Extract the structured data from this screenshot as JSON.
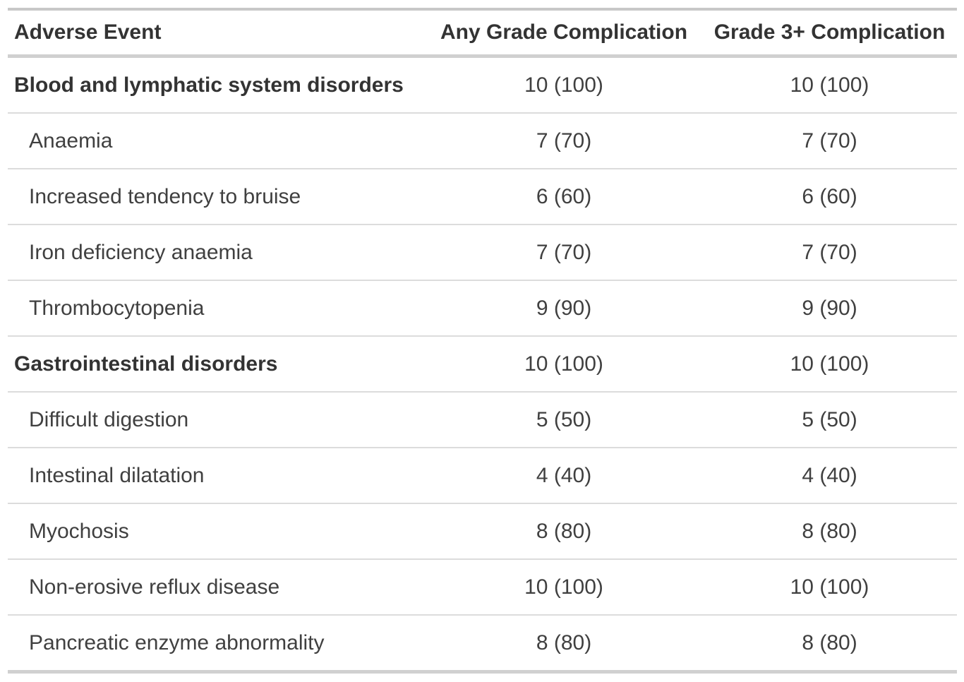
{
  "chart_data": {
    "type": "table",
    "columns": [
      "Adverse Event",
      "Any Grade Complication",
      "Grade 3+ Complication"
    ],
    "rows": [
      {
        "label": "Blood and lymphatic system disorders",
        "is_section": true,
        "cells": [
          "10 (100)",
          "10 (100)"
        ]
      },
      {
        "label": "Anaemia",
        "is_section": false,
        "cells": [
          "7 (70)",
          "7 (70)"
        ]
      },
      {
        "label": "Increased tendency to bruise",
        "is_section": false,
        "cells": [
          "6 (60)",
          "6 (60)"
        ]
      },
      {
        "label": "Iron deficiency anaemia",
        "is_section": false,
        "cells": [
          "7 (70)",
          "7 (70)"
        ]
      },
      {
        "label": "Thrombocytopenia",
        "is_section": false,
        "cells": [
          "9 (90)",
          "9 (90)"
        ]
      },
      {
        "label": "Gastrointestinal disorders",
        "is_section": true,
        "cells": [
          "10 (100)",
          "10 (100)"
        ]
      },
      {
        "label": "Difficult digestion",
        "is_section": false,
        "cells": [
          "5 (50)",
          "5 (50)"
        ]
      },
      {
        "label": "Intestinal dilatation",
        "is_section": false,
        "cells": [
          "4 (40)",
          "4 (40)"
        ]
      },
      {
        "label": "Myochosis",
        "is_section": false,
        "cells": [
          "8 (80)",
          "8 (80)"
        ]
      },
      {
        "label": "Non-erosive reflux disease",
        "is_section": false,
        "cells": [
          "10 (100)",
          "10 (100)"
        ]
      },
      {
        "label": "Pancreatic enzyme abnormality",
        "is_section": false,
        "cells": [
          "8 (80)",
          "8 (80)"
        ]
      }
    ],
    "title": "",
    "layout": {
      "grid": "horizontal-row-dividers",
      "header_position": "top"
    }
  },
  "colors": {
    "background": "#ffffff",
    "text_bold": "#333333",
    "text_regular": "#404040",
    "border_top": "#c8c8c8",
    "border_thick": "#d0d0d0",
    "border_row_divider": "#dcdcdc"
  }
}
